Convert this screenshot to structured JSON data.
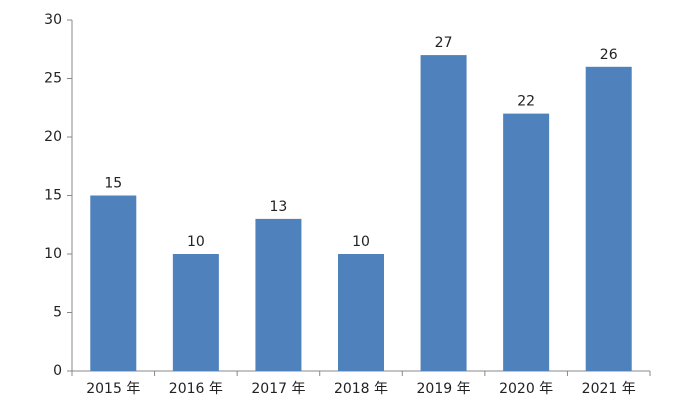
{
  "chart_data": {
    "type": "bar",
    "categories": [
      "2015 年",
      "2016 年",
      "2017 年",
      "2018 年",
      "2019 年",
      "2020 年",
      "2021 年"
    ],
    "values": [
      15,
      10,
      13,
      10,
      27,
      22,
      26
    ],
    "color": "#4f81bd",
    "ylim": [
      0,
      30
    ],
    "yticks": [
      0,
      5,
      10,
      15,
      20,
      25,
      30
    ],
    "grid": false
  }
}
